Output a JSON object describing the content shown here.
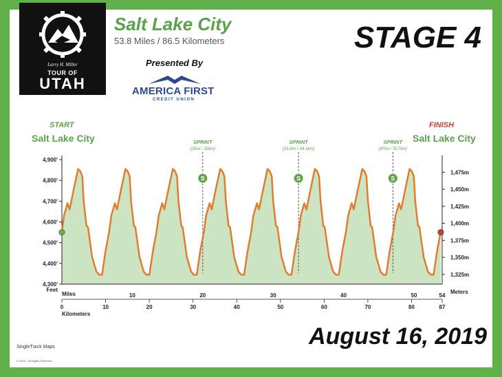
{
  "brand": {
    "signature": "Larry H. Miller",
    "tour_line": "TOUR OF",
    "utah_line": "UTAH"
  },
  "header": {
    "route_title": "Salt Lake City",
    "distance": "53.8 Miles / 86.5 Kilometers",
    "stage_title": "STAGE 4",
    "presented_by": "Presented By",
    "sponsor_name": "AMERICA FIRST",
    "sponsor_sub": "CREDIT UNION"
  },
  "start": {
    "tag": "START",
    "city": "Salt Lake City"
  },
  "finish": {
    "tag": "FINISH",
    "city": "Salt Lake City"
  },
  "date": "August 16, 2019",
  "credit": {
    "brand": "SingleTrack Maps",
    "copyright": "© 2019 · All Rights Reserved"
  },
  "colors": {
    "border": "#61b04a",
    "profile_line": "#e07c2d",
    "profile_fill": "#cde4c2",
    "start_marker": "#6ab05a",
    "finish_marker": "#c8403c",
    "sprint_marker": "#5aa24a"
  },
  "chart_data": {
    "type": "area",
    "x_unit": "Miles",
    "y_unit_left": "Feet",
    "y_unit_right": "Meters",
    "x2_unit": "Kilometers",
    "xlim": [
      0,
      54
    ],
    "ylim": [
      4300,
      4900
    ],
    "miles_ticks": [
      0,
      10,
      20,
      30,
      40,
      50,
      54
    ],
    "km_ticks": [
      0,
      10,
      20,
      30,
      40,
      50,
      60,
      70,
      80,
      87
    ],
    "feet_ticks": [
      {
        "value": 4300,
        "label": "4,300'"
      },
      {
        "value": 4400,
        "label": "4,400'"
      },
      {
        "value": 4500,
        "label": "4,500'"
      },
      {
        "value": 4600,
        "label": "4,600'"
      },
      {
        "value": 4700,
        "label": "4,700'"
      },
      {
        "value": 4800,
        "label": "4,800'"
      },
      {
        "value": 4900,
        "label": "4,900'"
      }
    ],
    "meter_ticks": [
      {
        "value": 1325,
        "label": "1,325m"
      },
      {
        "value": 1350,
        "label": "1,350m"
      },
      {
        "value": 1375,
        "label": "1,375m"
      },
      {
        "value": 1400,
        "label": "1,400m"
      },
      {
        "value": 1425,
        "label": "1,425m"
      },
      {
        "value": 1450,
        "label": "1,450m"
      },
      {
        "value": 1475,
        "label": "1,475m"
      }
    ],
    "lap_profile": [
      {
        "x": 0.0,
        "y": 4550
      },
      {
        "x": 0.3,
        "y": 4630
      },
      {
        "x": 0.8,
        "y": 4690
      },
      {
        "x": 1.1,
        "y": 4660
      },
      {
        "x": 1.7,
        "y": 4760
      },
      {
        "x": 2.3,
        "y": 4855
      },
      {
        "x": 2.6,
        "y": 4845
      },
      {
        "x": 2.9,
        "y": 4820
      },
      {
        "x": 3.1,
        "y": 4700
      },
      {
        "x": 3.5,
        "y": 4580
      },
      {
        "x": 3.7,
        "y": 4575
      },
      {
        "x": 4.3,
        "y": 4430
      },
      {
        "x": 4.9,
        "y": 4360
      },
      {
        "x": 5.3,
        "y": 4345
      },
      {
        "x": 5.7,
        "y": 4345
      },
      {
        "x": 6.2,
        "y": 4460
      },
      {
        "x": 6.7,
        "y": 4550
      }
    ],
    "laps": 8,
    "lap_length": 6.725,
    "sprints": [
      {
        "label": "SPRINT",
        "detail": "[20mi / 32km]",
        "x": 20.0,
        "y": 4810
      },
      {
        "label": "SPRINT",
        "detail": "[33.6mi / 54.1km]",
        "x": 33.6,
        "y": 4810
      },
      {
        "label": "SPRINT",
        "detail": "[47mi / 75.7km]",
        "x": 47.0,
        "y": 4810
      }
    ],
    "start_point": {
      "x": 0,
      "y": 4550
    },
    "finish_point": {
      "x": 53.8,
      "y": 4550
    }
  }
}
